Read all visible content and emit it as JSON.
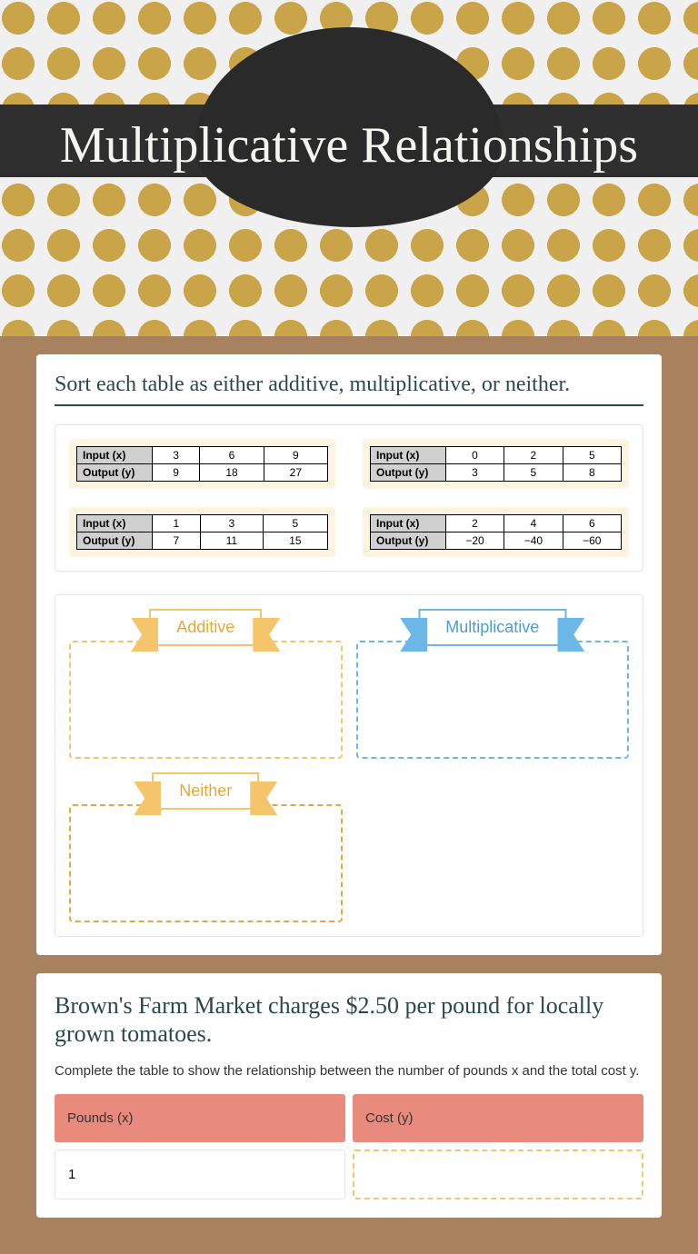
{
  "title": "Multiplicative Relationships",
  "instruction": "Sort each table as either additive, multiplicative, or neither.",
  "row_labels": {
    "input": "Input (x)",
    "output": "Output (y)"
  },
  "tables": [
    {
      "input": [
        "3",
        "6",
        "9"
      ],
      "output": [
        "9",
        "18",
        "27"
      ]
    },
    {
      "input": [
        "0",
        "2",
        "5"
      ],
      "output": [
        "3",
        "5",
        "8"
      ]
    },
    {
      "input": [
        "1",
        "3",
        "5"
      ],
      "output": [
        "7",
        "11",
        "15"
      ]
    },
    {
      "input": [
        "2",
        "4",
        "6"
      ],
      "output": [
        "−20",
        "−40",
        "−60"
      ]
    }
  ],
  "buckets": {
    "additive": "Additive",
    "multiplicative": "Multiplicative",
    "neither": "Neither"
  },
  "question2": {
    "title": "Brown's Farm Market charges $2.50 per pound for locally grown tomatoes.",
    "subtitle": "Complete the table to show the relationship between the number of pounds x and the total cost y.",
    "headers": {
      "pounds": "Pounds (x)",
      "cost": "Cost (y)"
    },
    "first_value": "1"
  },
  "colors": {
    "gold_dot": "#c9a449",
    "dark": "#2f2f2f",
    "kraft": "#a8825f",
    "orange_light": "#f5c56b",
    "orange_text": "#e8a838",
    "blue_light": "#6bb8e8",
    "blue_text": "#4a9dd4",
    "salmon": "#e88b7c",
    "cream": "#fdf5e0"
  }
}
